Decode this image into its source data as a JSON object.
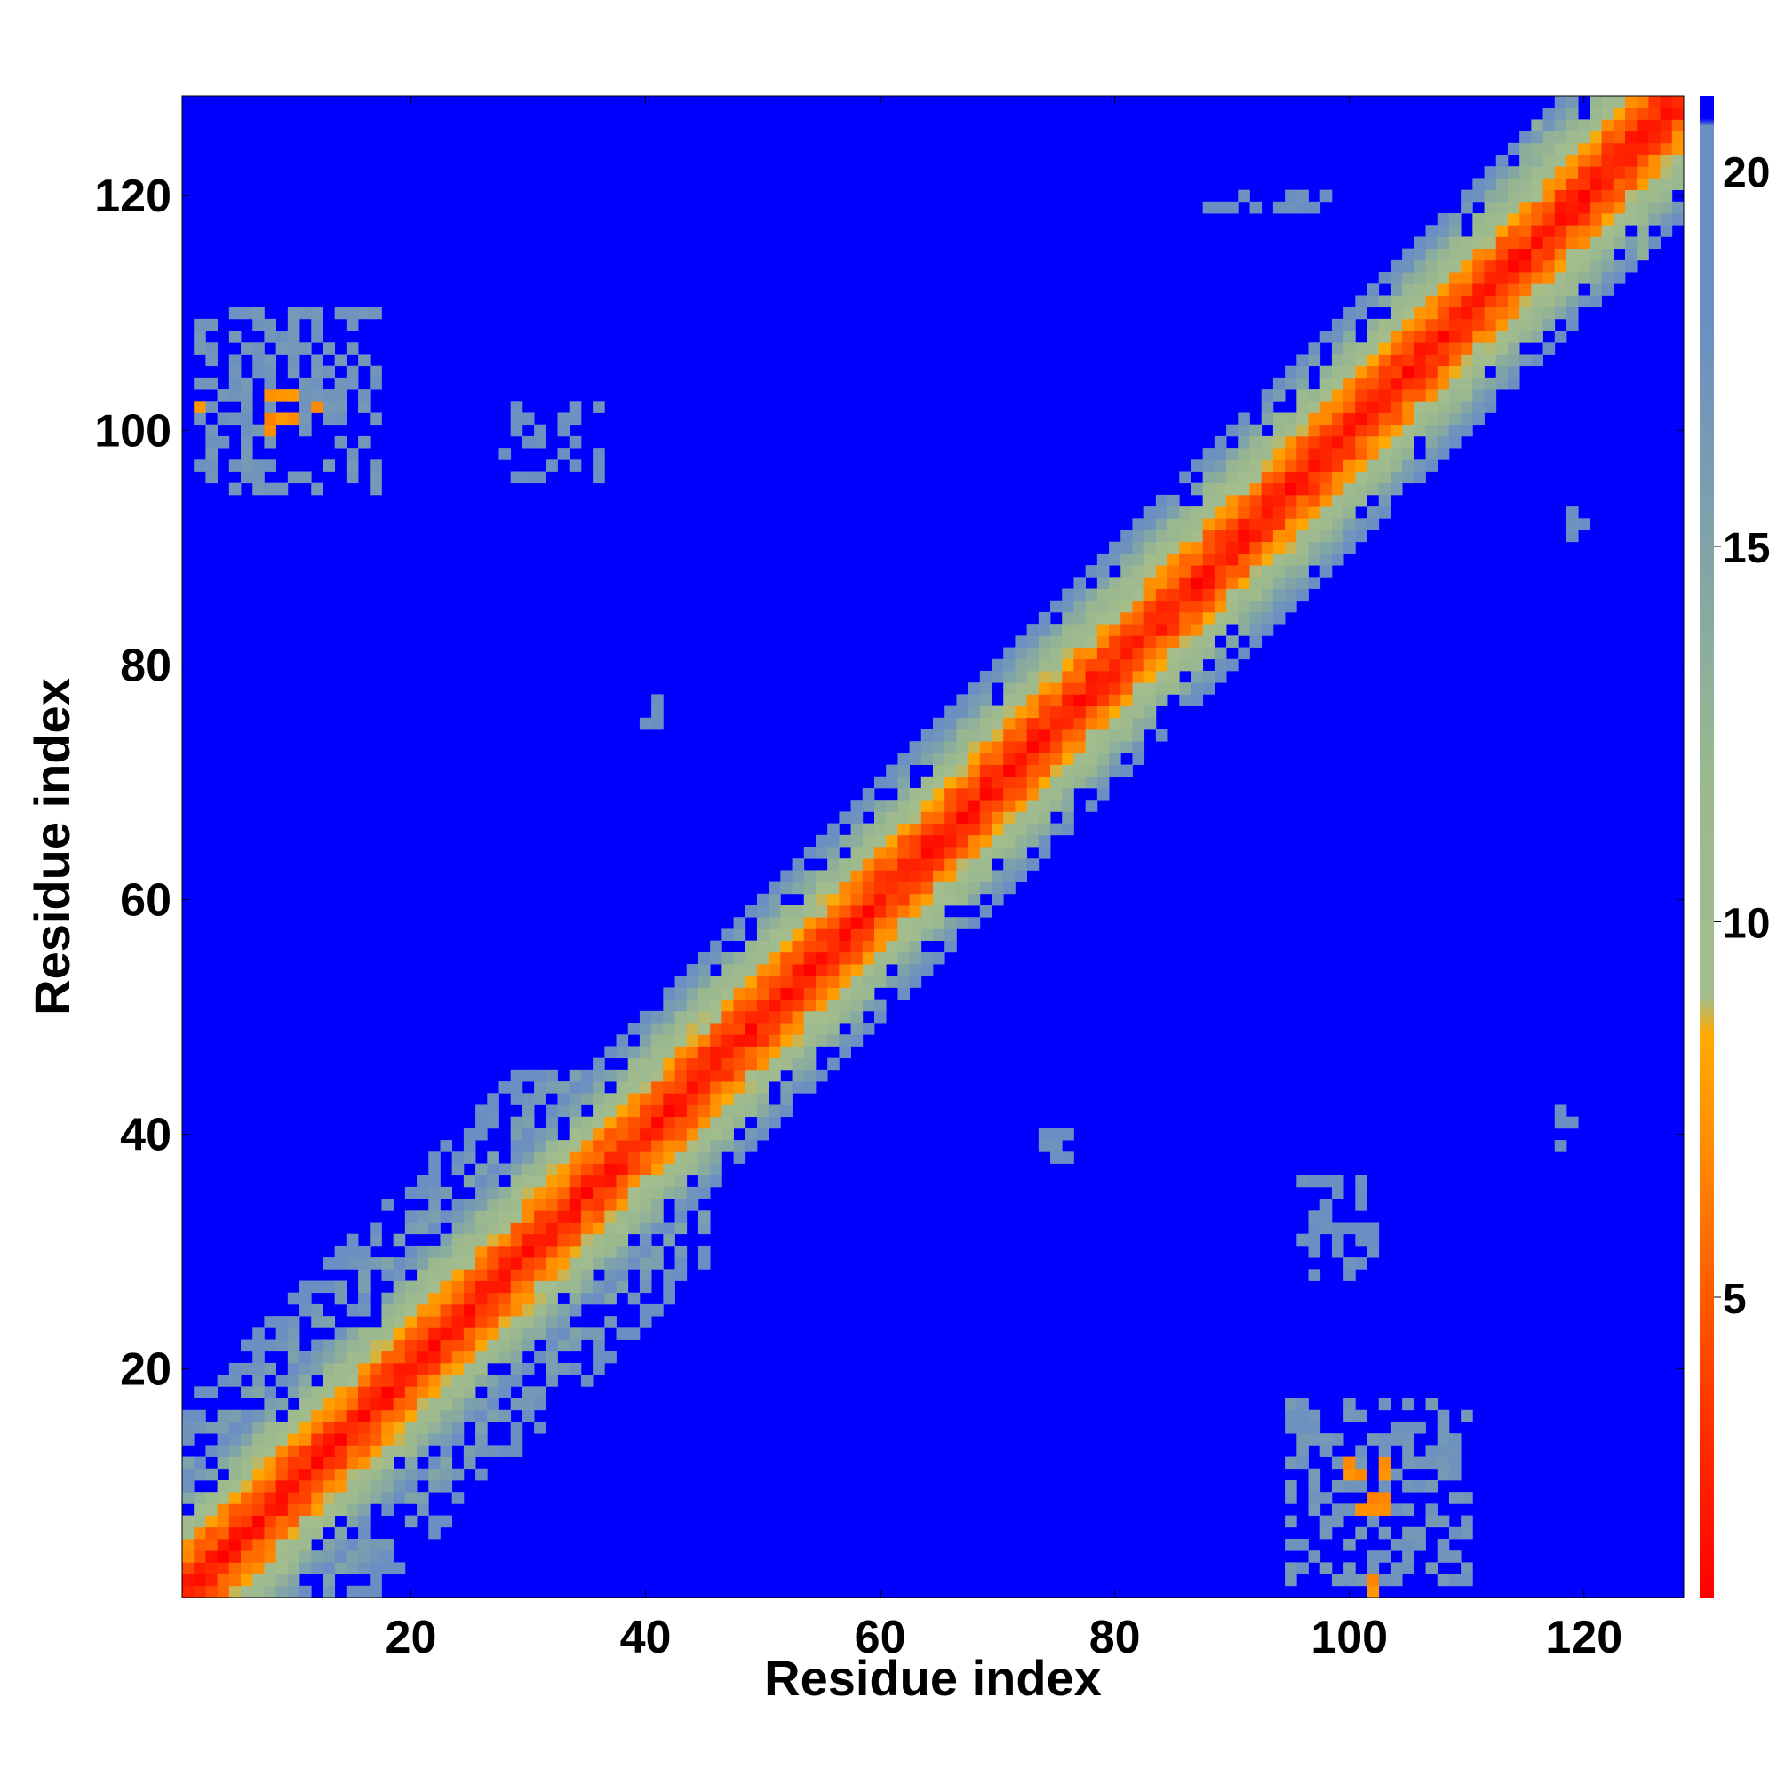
{
  "chart_data": {
    "type": "heatmap",
    "title": "",
    "xlabel": "Residue index",
    "ylabel": "Residue index",
    "n_residues": 128,
    "xlim": [
      1,
      128
    ],
    "ylim": [
      1,
      128
    ],
    "xticks": [
      20,
      40,
      60,
      80,
      100,
      120
    ],
    "yticks": [
      20,
      40,
      60,
      80,
      100,
      120
    ],
    "colorbar": {
      "ticks": [
        5,
        10,
        15,
        20
      ],
      "range": [
        1,
        21
      ],
      "stops": [
        {
          "value": 1,
          "color": "#ff0000"
        },
        {
          "value": 3,
          "color": "#ff2a00"
        },
        {
          "value": 5,
          "color": "#ff5a00"
        },
        {
          "value": 7,
          "color": "#ff8c00"
        },
        {
          "value": 8.5,
          "color": "#ffaa00"
        },
        {
          "value": 9,
          "color": "#a4bd8c"
        },
        {
          "value": 12,
          "color": "#9ab88f"
        },
        {
          "value": 15,
          "color": "#80a4a8"
        },
        {
          "value": 18,
          "color": "#6b8fc2"
        },
        {
          "value": 20.6,
          "color": "#6b8fc2"
        },
        {
          "value": 20.7,
          "color": "#0000ff"
        },
        {
          "value": 21,
          "color": "#0000ff"
        }
      ]
    },
    "cutoff": 20.6,
    "background_value": 21,
    "band_profile": [
      {
        "offset": 0,
        "value": 2
      },
      {
        "offset": 1,
        "value": 3
      },
      {
        "offset": 2,
        "value": 4.5
      },
      {
        "offset": 3,
        "value": 6
      },
      {
        "offset": 4,
        "value": 8
      },
      {
        "offset": 5,
        "value": 10
      },
      {
        "offset": 6,
        "value": 11
      },
      {
        "offset": 7,
        "value": 13
      },
      {
        "offset": 8,
        "value": 15
      },
      {
        "offset": 9,
        "value": 17
      },
      {
        "offset": 10,
        "value": 19
      }
    ],
    "wide_band_region": {
      "max_residue": 45,
      "max_offset": 16,
      "spread": 0.55
    },
    "contact_patches": [
      {
        "i": [
          2,
          17
        ],
        "j": [
          95,
          110
        ],
        "value": 17
      },
      {
        "i": [
          8,
          12
        ],
        "j": [
          100,
          103
        ],
        "value": 7
      },
      {
        "i": [
          2,
          3
        ],
        "j": [
          102,
          103
        ],
        "value": 7
      },
      {
        "i": [
          95,
          110
        ],
        "j": [
          2,
          17
        ],
        "value": 17
      },
      {
        "i": [
          100,
          103
        ],
        "j": [
          8,
          12
        ],
        "value": 7
      },
      {
        "i": [
          102,
          103
        ],
        "j": [
          1,
          2
        ],
        "value": 7
      },
      {
        "i": [
          28,
          36
        ],
        "j": [
          96,
          102
        ],
        "value": 18
      },
      {
        "i": [
          96,
          102
        ],
        "j": [
          28,
          36
        ],
        "value": 18
      },
      {
        "i": [
          40,
          41
        ],
        "j": [
          75,
          77
        ],
        "value": 18
      },
      {
        "i": [
          62,
          64
        ],
        "j": [
          62,
          64
        ],
        "value": 18
      },
      {
        "i": [
          74,
          76
        ],
        "j": [
          38,
          40
        ],
        "value": 18
      },
      {
        "i": [
          118,
          119
        ],
        "j": [
          39,
          42
        ],
        "value": 18
      },
      {
        "i": [
          119,
          120
        ],
        "j": [
          88,
          98
        ],
        "value": 18
      },
      {
        "i": [
          88,
          98
        ],
        "j": [
          119,
          120
        ],
        "value": 18
      },
      {
        "i": [
          112,
          118
        ],
        "j": [
          110,
          118
        ],
        "value": 14
      },
      {
        "i": [
          115,
          122
        ],
        "j": [
          119,
          126
        ],
        "value": 13
      },
      {
        "i": [
          119,
          126
        ],
        "j": [
          115,
          122
        ],
        "value": 13
      }
    ]
  }
}
